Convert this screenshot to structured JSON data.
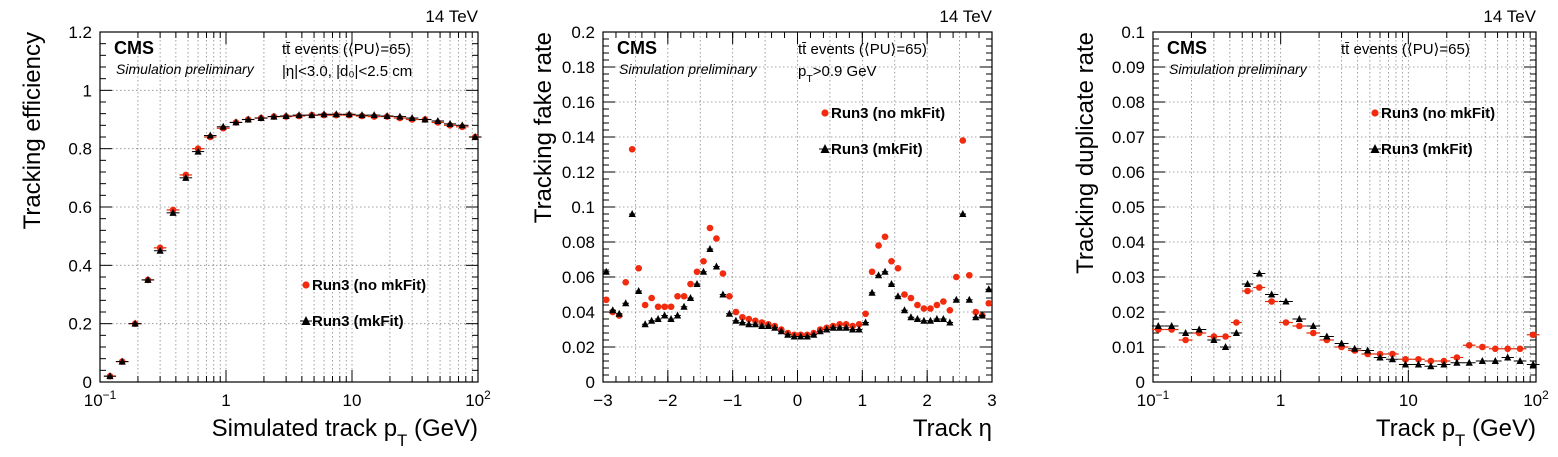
{
  "colors": {
    "red": "#f22a0e",
    "black": "#000000"
  },
  "chart_data": [
    {
      "type": "scatter",
      "name": "efficiency",
      "energy": "14 TeV",
      "cms": "CMS",
      "preliminary": "Simulation preliminary",
      "info": [
        "tt̄ events (⟨PU⟩=65)",
        "|η|<3.0, |d₀|<2.5 cm"
      ],
      "ylabel": "Tracking efficiency",
      "xlabel": "Simulated track p",
      "xlabel_sub": "T",
      "xlabel_unit": " (GeV)",
      "xscale": "log",
      "xlim": [
        0.1,
        100
      ],
      "ylim": [
        0,
        1.2
      ],
      "yticks": [
        {
          "v": 0,
          "label": "0"
        },
        {
          "v": 0.2,
          "label": "0.2"
        },
        {
          "v": 0.4,
          "label": "0.4"
        },
        {
          "v": 0.6,
          "label": "0.6"
        },
        {
          "v": 0.8,
          "label": "0.8"
        },
        {
          "v": 1,
          "label": "1"
        },
        {
          "v": 1.2,
          "label": "1.2"
        }
      ],
      "xticks": [
        {
          "v": 0.1,
          "label": "10",
          "sup": "−1"
        },
        {
          "v": 1,
          "label": "1"
        },
        {
          "v": 10,
          "label": "10"
        },
        {
          "v": 100,
          "label": "10",
          "sup": "2"
        }
      ],
      "legend": [
        "Run3 (no mkFit)",
        "Run3 (mkFit)"
      ],
      "legend_pos": "center-right",
      "x": [
        0.12,
        0.15,
        0.19,
        0.24,
        0.3,
        0.38,
        0.48,
        0.6,
        0.75,
        0.95,
        1.2,
        1.5,
        1.9,
        2.4,
        3.0,
        3.8,
        4.8,
        6.0,
        7.5,
        9.5,
        12,
        15,
        19,
        24,
        30,
        38,
        48,
        60,
        75,
        95
      ],
      "series": [
        {
          "name": "Run3 (no mkFit)",
          "marker": "circle",
          "values": [
            0.02,
            0.07,
            0.2,
            0.35,
            0.46,
            0.59,
            0.71,
            0.8,
            0.84,
            0.87,
            0.89,
            0.9,
            0.905,
            0.91,
            0.91,
            0.912,
            0.915,
            0.915,
            0.915,
            0.915,
            0.912,
            0.91,
            0.91,
            0.905,
            0.9,
            0.9,
            0.89,
            0.88,
            0.875,
            0.84
          ]
        },
        {
          "name": "Run3 (mkFit)",
          "marker": "triangle",
          "values": [
            0.02,
            0.07,
            0.2,
            0.35,
            0.45,
            0.58,
            0.7,
            0.79,
            0.845,
            0.875,
            0.89,
            0.9,
            0.905,
            0.91,
            0.912,
            0.915,
            0.915,
            0.918,
            0.918,
            0.918,
            0.915,
            0.915,
            0.912,
            0.91,
            0.905,
            0.9,
            0.895,
            0.885,
            0.88,
            0.84
          ]
        }
      ]
    },
    {
      "type": "scatter",
      "name": "fake-rate",
      "energy": "14 TeV",
      "cms": "CMS",
      "preliminary": "Simulation preliminary",
      "info": [
        "tt̄ events (⟨PU⟩=65)",
        "p_T>0.9 GeV"
      ],
      "ylabel": "Tracking fake rate",
      "xlabel": "Track η",
      "xscale": "linear",
      "xlim": [
        -3,
        3
      ],
      "ylim": [
        0,
        0.2
      ],
      "yticks": [
        {
          "v": 0,
          "label": "0"
        },
        {
          "v": 0.02,
          "label": "0.02"
        },
        {
          "v": 0.04,
          "label": "0.04"
        },
        {
          "v": 0.06,
          "label": "0.06"
        },
        {
          "v": 0.08,
          "label": "0.08"
        },
        {
          "v": 0.1,
          "label": "0.1"
        },
        {
          "v": 0.12,
          "label": "0.12"
        },
        {
          "v": 0.14,
          "label": "0.14"
        },
        {
          "v": 0.16,
          "label": "0.16"
        },
        {
          "v": 0.18,
          "label": "0.18"
        },
        {
          "v": 0.2,
          "label": "0.2"
        }
      ],
      "xticks": [
        {
          "v": -3,
          "label": "−3"
        },
        {
          "v": -2,
          "label": "−2"
        },
        {
          "v": -1,
          "label": "−1"
        },
        {
          "v": 0,
          "label": "0"
        },
        {
          "v": 1,
          "label": "1"
        },
        {
          "v": 2,
          "label": "2"
        },
        {
          "v": 3,
          "label": "3"
        }
      ],
      "legend": [
        "Run3 (no mkFit)",
        "Run3 (mkFit)"
      ],
      "legend_pos": "upper-center-right",
      "x": [
        -2.95,
        -2.85,
        -2.75,
        -2.65,
        -2.55,
        -2.45,
        -2.35,
        -2.25,
        -2.15,
        -2.05,
        -1.95,
        -1.85,
        -1.75,
        -1.65,
        -1.55,
        -1.45,
        -1.35,
        -1.25,
        -1.15,
        -1.05,
        -0.95,
        -0.85,
        -0.75,
        -0.65,
        -0.55,
        -0.45,
        -0.35,
        -0.25,
        -0.15,
        -0.05,
        0.05,
        0.15,
        0.25,
        0.35,
        0.45,
        0.55,
        0.65,
        0.75,
        0.85,
        0.95,
        1.05,
        1.15,
        1.25,
        1.35,
        1.45,
        1.55,
        1.65,
        1.75,
        1.85,
        1.95,
        2.05,
        2.15,
        2.25,
        2.35,
        2.45,
        2.55,
        2.65,
        2.75,
        2.85,
        2.95
      ],
      "series": [
        {
          "name": "Run3 (no mkFit)",
          "marker": "circle",
          "values": [
            0.047,
            0.04,
            0.038,
            0.057,
            0.133,
            0.065,
            0.044,
            0.048,
            0.043,
            0.043,
            0.043,
            0.049,
            0.049,
            0.056,
            0.063,
            0.069,
            0.088,
            0.082,
            0.062,
            0.049,
            0.04,
            0.037,
            0.036,
            0.035,
            0.034,
            0.033,
            0.032,
            0.03,
            0.028,
            0.027,
            0.027,
            0.027,
            0.028,
            0.03,
            0.031,
            0.032,
            0.033,
            0.033,
            0.032,
            0.033,
            0.039,
            0.063,
            0.078,
            0.083,
            0.069,
            0.065,
            0.05,
            0.048,
            0.044,
            0.042,
            0.042,
            0.044,
            0.046,
            0.041,
            0.06,
            0.138,
            0.061,
            0.04,
            0.038,
            0.045
          ]
        },
        {
          "name": "Run3 (mkFit)",
          "marker": "triangle",
          "values": [
            0.063,
            0.041,
            0.039,
            0.045,
            0.096,
            0.052,
            0.033,
            0.035,
            0.036,
            0.038,
            0.036,
            0.038,
            0.043,
            0.048,
            0.056,
            0.063,
            0.076,
            0.066,
            0.05,
            0.039,
            0.035,
            0.034,
            0.033,
            0.033,
            0.032,
            0.032,
            0.031,
            0.029,
            0.027,
            0.026,
            0.026,
            0.026,
            0.027,
            0.029,
            0.03,
            0.031,
            0.031,
            0.031,
            0.03,
            0.03,
            0.034,
            0.051,
            0.061,
            0.063,
            0.056,
            0.049,
            0.041,
            0.037,
            0.036,
            0.035,
            0.035,
            0.036,
            0.036,
            0.034,
            0.047,
            0.096,
            0.047,
            0.037,
            0.038,
            0.053
          ]
        }
      ]
    },
    {
      "type": "scatter",
      "name": "duplicate-rate",
      "energy": "14 TeV",
      "cms": "CMS",
      "preliminary": "Simulation preliminary",
      "info": [
        "tt̄ events (⟨PU⟩=65)"
      ],
      "ylabel": "Tracking duplicate rate",
      "xlabel": "Track p",
      "xlabel_sub": "T",
      "xlabel_unit": " (GeV)",
      "xscale": "log",
      "xlim": [
        0.1,
        100
      ],
      "ylim": [
        0,
        0.1
      ],
      "yticks": [
        {
          "v": 0,
          "label": "0"
        },
        {
          "v": 0.01,
          "label": "0.01"
        },
        {
          "v": 0.02,
          "label": "0.02"
        },
        {
          "v": 0.03,
          "label": "0.03"
        },
        {
          "v": 0.04,
          "label": "0.04"
        },
        {
          "v": 0.05,
          "label": "0.05"
        },
        {
          "v": 0.06,
          "label": "0.06"
        },
        {
          "v": 0.07,
          "label": "0.07"
        },
        {
          "v": 0.08,
          "label": "0.08"
        },
        {
          "v": 0.09,
          "label": "0.09"
        },
        {
          "v": 0.1,
          "label": "0.1"
        }
      ],
      "xticks": [
        {
          "v": 0.1,
          "label": "10",
          "sup": "−1"
        },
        {
          "v": 1,
          "label": "1"
        },
        {
          "v": 10,
          "label": "10"
        },
        {
          "v": 100,
          "label": "10",
          "sup": "2"
        }
      ],
      "legend": [
        "Run3 (no mkFit)",
        "Run3 (mkFit)"
      ],
      "legend_pos": "upper-center-right",
      "x": [
        0.11,
        0.14,
        0.18,
        0.23,
        0.3,
        0.37,
        0.45,
        0.55,
        0.68,
        0.85,
        1.1,
        1.4,
        1.8,
        2.3,
        3.0,
        3.8,
        4.8,
        6.0,
        7.5,
        9.5,
        12,
        15,
        19,
        24,
        30,
        38,
        48,
        60,
        75,
        95
      ],
      "series": [
        {
          "name": "Run3 (no mkFit)",
          "marker": "circle",
          "values": [
            0.015,
            0.015,
            0.012,
            0.014,
            0.013,
            0.013,
            0.017,
            0.026,
            0.027,
            0.023,
            0.017,
            0.016,
            0.014,
            0.012,
            0.01,
            0.009,
            0.008,
            0.008,
            0.008,
            0.0065,
            0.0065,
            0.006,
            0.006,
            0.007,
            0.0105,
            0.01,
            0.0095,
            0.0095,
            0.0095,
            0.0135
          ]
        },
        {
          "name": "Run3 (mkFit)",
          "marker": "triangle",
          "values": [
            0.016,
            0.016,
            0.014,
            0.015,
            0.012,
            0.01,
            0.014,
            0.028,
            0.031,
            0.025,
            0.023,
            0.018,
            0.016,
            0.013,
            0.011,
            0.0095,
            0.009,
            0.007,
            0.0065,
            0.005,
            0.005,
            0.0045,
            0.005,
            0.0055,
            0.0055,
            0.006,
            0.006,
            0.007,
            0.006,
            0.005
          ]
        }
      ]
    }
  ]
}
